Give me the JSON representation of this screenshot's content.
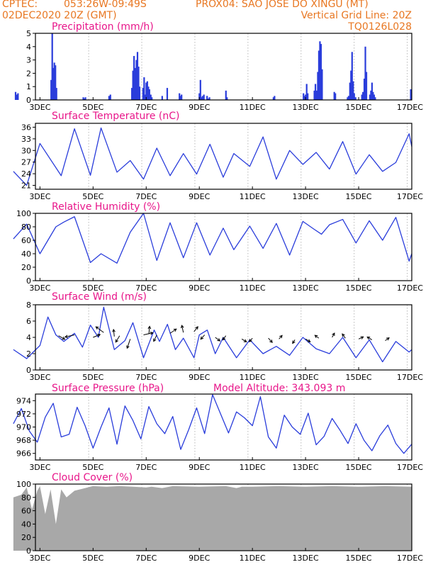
{
  "header": {
    "line1_left": "CPTEC:",
    "coords": "053:26W-09:49S",
    "station": "PROX04: SAO JOSE DO XINGU (MT)",
    "run": "02DEC2020 20Z (GMT)",
    "grid_note": "Vertical Grid Line: 20Z",
    "model_code": "TQ0126L028"
  },
  "colors": {
    "header": "#e87722",
    "title": "#e8168a",
    "series": "#2a3ddb",
    "cloud": "#a8a8a8",
    "grid": "#888888"
  },
  "x_axis": {
    "tick_labels": [
      "3DEC",
      "5DEC",
      "7DEC",
      "9DEC",
      "11DEC",
      "13DEC",
      "15DEC",
      "17DEC"
    ],
    "range_days": [
      2.83,
      17.0
    ]
  },
  "chart_data": [
    {
      "type": "bar",
      "title": "Precipitation (mm/h)",
      "ylim": [
        0,
        5
      ],
      "yticks": [
        "0",
        "1",
        "2",
        "3",
        "4",
        "5"
      ],
      "x": [
        2.08,
        2.12,
        2.17,
        3.42,
        3.46,
        3.5,
        3.54,
        3.58,
        3.62,
        4.63,
        4.67,
        4.71,
        5.6,
        5.65,
        6.46,
        6.5,
        6.54,
        6.58,
        6.63,
        6.67,
        6.71,
        6.75,
        6.88,
        6.92,
        6.96,
        7.0,
        7.04,
        7.08,
        7.12,
        7.17,
        7.21,
        7.6,
        7.79,
        8.25,
        8.29,
        8.33,
        9.0,
        9.04,
        9.08,
        9.12,
        9.17,
        9.29,
        9.33,
        9.38,
        10.0,
        10.04,
        11.79,
        11.83,
        12.92,
        12.96,
        13.0,
        13.04,
        13.08,
        13.33,
        13.37,
        13.42,
        13.46,
        13.5,
        13.54,
        13.58,
        13.62,
        14.08,
        14.12,
        14.58,
        14.62,
        14.67,
        14.71,
        14.75,
        14.79,
        14.83,
        14.88,
        15.12,
        15.16,
        15.21,
        15.25,
        15.29,
        15.42,
        15.46,
        15.5,
        15.54,
        15.58,
        15.62,
        16.96
      ],
      "values": [
        0.6,
        0.4,
        0.5,
        1.5,
        5.0,
        2.4,
        2.8,
        2.6,
        0.9,
        0.2,
        0.1,
        0.2,
        0.3,
        0.4,
        0.9,
        2.2,
        3.3,
        2.4,
        3.0,
        3.6,
        2.5,
        1.0,
        0.9,
        1.7,
        0.4,
        1.3,
        1.4,
        1.0,
        0.8,
        0.4,
        0.2,
        0.3,
        0.9,
        0.5,
        0.3,
        0.4,
        0.5,
        1.5,
        0.2,
        0.3,
        0.4,
        0.3,
        0.1,
        0.2,
        0.7,
        0.2,
        0.2,
        0.3,
        0.5,
        0.3,
        0.4,
        1.2,
        0.5,
        0.7,
        1.2,
        0.7,
        2.1,
        3.7,
        4.4,
        4.2,
        2.3,
        0.6,
        0.5,
        0.2,
        0.3,
        1.3,
        2.2,
        3.6,
        1.4,
        0.5,
        0.2,
        0.4,
        0.6,
        1.6,
        4.0,
        2.1,
        0.4,
        0.7,
        1.3,
        0.6,
        0.4,
        0.2,
        0.8
      ]
    },
    {
      "type": "line",
      "title": "Surface Temperature (nC)",
      "ylim": [
        20,
        37
      ],
      "yticks": [
        "21",
        "24",
        "27",
        "30",
        "33",
        "36"
      ],
      "x": [
        2.0,
        2.5,
        3.0,
        3.8,
        4.3,
        4.9,
        5.3,
        5.9,
        6.4,
        6.9,
        7.4,
        7.9,
        8.4,
        8.9,
        9.4,
        9.9,
        10.3,
        10.9,
        11.4,
        11.9,
        12.4,
        12.9,
        13.4,
        13.9,
        14.4,
        14.9,
        15.4,
        15.9,
        16.4,
        16.9,
        17.0
      ],
      "values": [
        24.6,
        21.0,
        31.8,
        23.5,
        35.6,
        23.6,
        35.8,
        24.4,
        27.4,
        22.6,
        30.6,
        23.5,
        29.2,
        23.9,
        31.6,
        23.1,
        29.2,
        25.9,
        33.5,
        22.6,
        30.0,
        26.4,
        29.5,
        25.2,
        32.3,
        23.9,
        28.9,
        24.6,
        26.9,
        34.3,
        31.0
      ]
    },
    {
      "type": "line",
      "title": "Relative Humidity (%)",
      "ylim": [
        0,
        100
      ],
      "yticks": [
        "0",
        "20",
        "40",
        "60",
        "80",
        "100"
      ],
      "x": [
        2.0,
        2.5,
        3.0,
        3.6,
        3.9,
        4.3,
        4.9,
        5.3,
        5.9,
        6.4,
        6.9,
        7.4,
        7.9,
        8.4,
        8.9,
        9.4,
        9.9,
        10.3,
        10.9,
        11.4,
        11.9,
        12.4,
        12.9,
        13.3,
        13.6,
        13.9,
        14.4,
        14.9,
        15.4,
        15.9,
        16.4,
        16.9,
        17.0
      ],
      "values": [
        62.0,
        84.0,
        40.0,
        80.0,
        87.0,
        95.0,
        27.0,
        40.0,
        26.0,
        72.0,
        100.0,
        30.0,
        86.0,
        34.0,
        86.0,
        38.0,
        78.0,
        46.0,
        81.0,
        48.0,
        85.0,
        38.0,
        88.0,
        77.0,
        69.0,
        83.0,
        91.0,
        56.0,
        89.0,
        60.0,
        94.0,
        29.0,
        40.0
      ]
    },
    {
      "type": "line",
      "title": "Surface Wind (m/s)",
      "ylim": [
        0,
        8
      ],
      "yticks": [
        "0",
        "2",
        "4",
        "6",
        "8"
      ],
      "x": [
        2.0,
        2.5,
        3.0,
        3.3,
        3.6,
        3.9,
        4.3,
        4.6,
        4.9,
        5.2,
        5.4,
        5.8,
        6.2,
        6.5,
        6.9,
        7.3,
        7.5,
        7.8,
        8.1,
        8.4,
        8.8,
        9.0,
        9.3,
        9.6,
        9.9,
        10.4,
        10.9,
        11.4,
        11.9,
        12.4,
        12.9,
        13.4,
        13.9,
        14.4,
        14.9,
        15.4,
        15.9,
        16.4,
        16.9,
        17.0
      ],
      "values": [
        2.5,
        1.4,
        3.0,
        6.5,
        4.3,
        3.5,
        4.5,
        2.8,
        5.5,
        4.0,
        7.7,
        2.5,
        3.6,
        5.8,
        1.5,
        4.9,
        3.5,
        5.6,
        2.5,
        3.9,
        1.5,
        4.3,
        4.9,
        2.0,
        4.0,
        1.5,
        3.7,
        2.0,
        2.9,
        1.8,
        4.0,
        2.6,
        2.0,
        4.0,
        1.5,
        3.7,
        1.0,
        3.5,
        2.2,
        2.5
      ]
    },
    {
      "type": "line",
      "title": "Surface Pressure (hPa)",
      "annotation": "Model Altitude: 343.093 m",
      "ylim": [
        965,
        975
      ],
      "yticks": [
        "966",
        "968",
        "970",
        "972",
        "974"
      ],
      "x": [
        2.0,
        2.3,
        2.6,
        2.9,
        3.2,
        3.5,
        3.8,
        4.1,
        4.4,
        4.7,
        5.0,
        5.3,
        5.6,
        5.9,
        6.2,
        6.5,
        6.8,
        7.1,
        7.4,
        7.7,
        8.0,
        8.3,
        8.6,
        8.9,
        9.2,
        9.5,
        9.8,
        10.1,
        10.4,
        10.7,
        11.0,
        11.3,
        11.6,
        11.9,
        12.2,
        12.5,
        12.8,
        13.1,
        13.4,
        13.7,
        14.0,
        14.3,
        14.6,
        14.9,
        15.2,
        15.5,
        15.8,
        16.1,
        16.4,
        16.7,
        17.0
      ],
      "values": [
        970.5,
        972.8,
        969.4,
        967.7,
        971.5,
        973.6,
        968.5,
        968.9,
        973.0,
        970.2,
        966.8,
        970.0,
        972.9,
        967.4,
        973.2,
        971.0,
        968.2,
        973.1,
        970.5,
        969.0,
        971.6,
        966.6,
        969.6,
        972.9,
        969.0,
        974.9,
        972.0,
        969.1,
        972.3,
        971.4,
        970.2,
        974.6,
        968.5,
        966.8,
        971.8,
        970.0,
        968.9,
        972.1,
        967.3,
        968.6,
        971.3,
        969.5,
        967.5,
        970.5,
        968.0,
        966.4,
        968.7,
        970.3,
        967.5,
        966.0,
        967.4
      ]
    },
    {
      "type": "area",
      "title": "Cloud Cover (%)",
      "ylim": [
        0,
        100
      ],
      "yticks": [
        "0",
        "20",
        "40",
        "60",
        "80",
        "100"
      ],
      "x": [
        2.0,
        2.3,
        2.5,
        2.7,
        2.9,
        3.0,
        3.2,
        3.4,
        3.6,
        3.8,
        4.0,
        4.3,
        4.6,
        4.9,
        5.0,
        5.5,
        6.0,
        6.5,
        7.0,
        7.2,
        7.6,
        8.0,
        9.0,
        10.0,
        10.4,
        10.6,
        11.0,
        12.0,
        13.0,
        14.0,
        15.0,
        16.0,
        17.0
      ],
      "values": [
        80.0,
        84.0,
        95.0,
        62.0,
        90.0,
        97.0,
        55.0,
        92.0,
        40.0,
        92.0,
        80.0,
        90.0,
        93.0,
        96.0,
        97.0,
        96.0,
        97.0,
        96.0,
        95.0,
        96.0,
        94.0,
        97.0,
        96.0,
        97.0,
        94.0,
        96.0,
        96.0,
        97.0,
        96.0,
        97.0,
        96.0,
        97.0,
        96.0
      ]
    }
  ]
}
